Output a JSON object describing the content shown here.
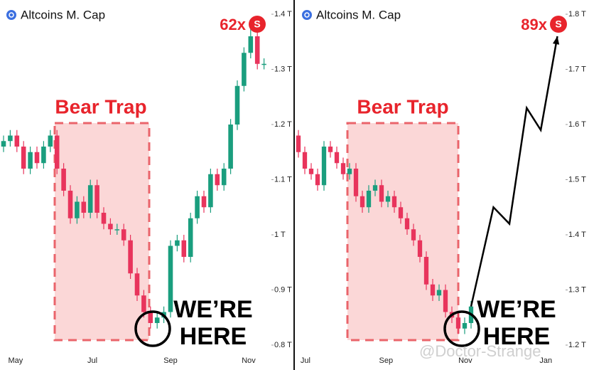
{
  "chart_data": [
    {
      "type": "candlestick",
      "title": "Altcoins M. Cap",
      "up_color": "#1a9e7e",
      "down_color": "#e8345c",
      "open": [
        1.16,
        1.17,
        1.18,
        1.16,
        1.12,
        1.15,
        1.13,
        1.16,
        1.18,
        1.12,
        1.08,
        1.03,
        1.06,
        1.04,
        1.09,
        1.04,
        1.02,
        1.01,
        1.01,
        0.99,
        0.93,
        0.89,
        0.86,
        0.84,
        0.85,
        0.86,
        0.98,
        0.99,
        0.96,
        1.03,
        1.07,
        1.05,
        1.11,
        1.09,
        1.12,
        1.2,
        1.27,
        1.33,
        1.36,
        1.31
      ],
      "high": [
        1.18,
        1.19,
        1.19,
        1.17,
        1.16,
        1.16,
        1.17,
        1.19,
        1.19,
        1.13,
        1.09,
        1.07,
        1.07,
        1.1,
        1.1,
        1.05,
        1.03,
        1.02,
        1.02,
        1.0,
        0.94,
        0.9,
        0.87,
        0.86,
        0.87,
        0.99,
        1.0,
        1.0,
        1.04,
        1.08,
        1.08,
        1.12,
        1.12,
        1.13,
        1.21,
        1.28,
        1.34,
        1.39,
        1.37,
        1.32
      ],
      "low": [
        1.15,
        1.16,
        1.15,
        1.11,
        1.11,
        1.12,
        1.12,
        1.15,
        1.11,
        1.07,
        1.02,
        1.02,
        1.03,
        1.03,
        1.03,
        1.01,
        1.0,
        1.0,
        0.98,
        0.92,
        0.88,
        0.85,
        0.83,
        0.83,
        0.84,
        0.85,
        0.97,
        0.95,
        0.95,
        1.02,
        1.04,
        1.04,
        1.08,
        1.08,
        1.11,
        1.19,
        1.26,
        1.32,
        1.3,
        1.3
      ],
      "close": [
        1.17,
        1.18,
        1.16,
        1.12,
        1.15,
        1.13,
        1.16,
        1.18,
        1.12,
        1.08,
        1.03,
        1.06,
        1.04,
        1.09,
        1.04,
        1.02,
        1.01,
        1.01,
        0.99,
        0.93,
        0.89,
        0.86,
        0.84,
        0.85,
        0.86,
        0.98,
        0.99,
        0.96,
        1.03,
        1.07,
        1.05,
        1.11,
        1.09,
        1.12,
        1.2,
        1.27,
        1.33,
        1.36,
        1.31,
        1.31
      ],
      "ylim": [
        0.8,
        1.4
      ],
      "yticks": [
        {
          "value": 0.8,
          "label": "0.8 T"
        },
        {
          "value": 0.9,
          "label": "0.9 T"
        },
        {
          "value": 1,
          "label": "1 T"
        },
        {
          "value": 1.1,
          "label": "1.1 T"
        },
        {
          "value": 1.2,
          "label": "1.2 T"
        },
        {
          "value": 1.3,
          "label": "1.3 T"
        },
        {
          "value": 1.4,
          "label": "1.4 T"
        }
      ],
      "xticks": [
        {
          "value": 1.8,
          "label": "May"
        },
        {
          "value": 13.3,
          "label": "Jul"
        },
        {
          "value": 25,
          "label": "Sep"
        },
        {
          "value": 36.7,
          "label": "Nov"
        }
      ],
      "zone_label": "Bear Trap",
      "here_label": [
        "WE’RE",
        "HERE"
      ],
      "multiplier": "62x",
      "badge": "S"
    },
    {
      "type": "candlestick",
      "title": "Altcoins M. Cap",
      "up_color": "#1a9e7e",
      "down_color": "#e8345c",
      "open": [
        1.58,
        1.55,
        1.52,
        1.51,
        1.49,
        1.56,
        1.55,
        1.53,
        1.51,
        1.52,
        1.47,
        1.45,
        1.48,
        1.49,
        1.46,
        1.47,
        1.45,
        1.43,
        1.41,
        1.39,
        1.36,
        1.31,
        1.29,
        1.3,
        1.26,
        1.25,
        1.23,
        1.24
      ],
      "high": [
        1.59,
        1.56,
        1.53,
        1.52,
        1.57,
        1.57,
        1.56,
        1.54,
        1.53,
        1.53,
        1.48,
        1.49,
        1.5,
        1.5,
        1.48,
        1.48,
        1.46,
        1.44,
        1.42,
        1.4,
        1.37,
        1.32,
        1.31,
        1.31,
        1.27,
        1.26,
        1.25,
        1.28
      ],
      "low": [
        1.54,
        1.51,
        1.5,
        1.48,
        1.48,
        1.54,
        1.52,
        1.5,
        1.5,
        1.46,
        1.44,
        1.44,
        1.47,
        1.45,
        1.45,
        1.44,
        1.42,
        1.4,
        1.38,
        1.35,
        1.3,
        1.28,
        1.28,
        1.25,
        1.24,
        1.22,
        1.22,
        1.23
      ],
      "close": [
        1.55,
        1.52,
        1.51,
        1.49,
        1.56,
        1.55,
        1.53,
        1.51,
        1.52,
        1.47,
        1.45,
        1.48,
        1.49,
        1.46,
        1.47,
        1.45,
        1.43,
        1.41,
        1.39,
        1.36,
        1.31,
        1.29,
        1.3,
        1.26,
        1.25,
        1.23,
        1.24,
        1.27
      ],
      "projection_x": [
        27,
        30.5,
        33,
        35.7,
        37.9,
        40.5
      ],
      "projection_values": [
        1.27,
        1.45,
        1.42,
        1.63,
        1.59,
        1.76
      ],
      "ylim": [
        1.2,
        1.8
      ],
      "yticks": [
        {
          "value": 1.2,
          "label": "1.2 T"
        },
        {
          "value": 1.3,
          "label": "1.3 T"
        },
        {
          "value": 1.4,
          "label": "1.4 T"
        },
        {
          "value": 1.5,
          "label": "1.5 T"
        },
        {
          "value": 1.6,
          "label": "1.6 T"
        },
        {
          "value": 1.7,
          "label": "1.7 T"
        },
        {
          "value": 1.8,
          "label": "1.8 T"
        }
      ],
      "xticks": [
        {
          "value": 1.1,
          "label": "Jul"
        },
        {
          "value": 13.7,
          "label": "Sep"
        },
        {
          "value": 26.1,
          "label": "Nov"
        },
        {
          "value": 38.7,
          "label": "Jan"
        }
      ],
      "zone_label": "Bear Trap",
      "here_label": [
        "WE’RE",
        "HERE"
      ],
      "multiplier": "89x",
      "badge": "S"
    }
  ],
  "watermark": "@Doctor-Strange"
}
